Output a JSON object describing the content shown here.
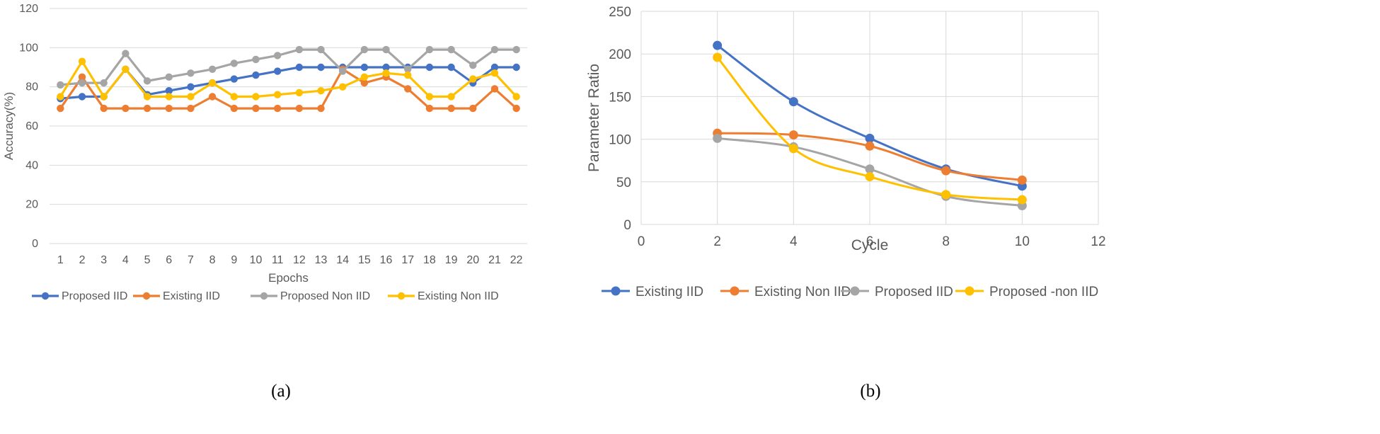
{
  "chart_data": [
    {
      "type": "line",
      "caption": "(a)",
      "xlabel": "Epochs",
      "ylabel": "Accuracy(%)",
      "ylim": [
        0,
        120
      ],
      "yticks": [
        0,
        20,
        40,
        60,
        80,
        100,
        120
      ],
      "categories": [
        "1",
        "2",
        "3",
        "4",
        "5",
        "6",
        "7",
        "8",
        "9",
        "10",
        "11",
        "12",
        "13",
        "14",
        "15",
        "16",
        "17",
        "18",
        "19",
        "20",
        "21",
        "22"
      ],
      "grid": "horizontal",
      "legend_position": "bottom",
      "series": [
        {
          "name": "Proposed IID",
          "color": "#4472C4",
          "values": [
            74,
            75,
            75,
            89,
            76,
            78,
            80,
            82,
            84,
            86,
            88,
            90,
            90,
            90,
            90,
            90,
            90,
            90,
            90,
            82,
            90,
            90
          ]
        },
        {
          "name": "Existing IID",
          "color": "#ED7D31",
          "values": [
            69,
            85,
            69,
            69,
            69,
            69,
            69,
            75,
            69,
            69,
            69,
            69,
            69,
            89,
            82,
            85,
            79,
            69,
            69,
            69,
            79,
            69
          ]
        },
        {
          "name": "Proposed Non IID",
          "color": "#A5A5A5",
          "values": [
            81,
            82,
            82,
            97,
            83,
            85,
            87,
            89,
            92,
            94,
            96,
            99,
            99,
            88,
            99,
            99,
            89,
            99,
            99,
            91,
            99,
            99
          ]
        },
        {
          "name": "Existing Non IID",
          "color": "#FFC000",
          "values": [
            75,
            93,
            75,
            89,
            75,
            75,
            75,
            82,
            75,
            75,
            76,
            77,
            78,
            80,
            85,
            87,
            86,
            75,
            75,
            84,
            87,
            75
          ]
        }
      ]
    },
    {
      "type": "line",
      "caption": "(b)",
      "xlabel": "Cycle",
      "ylabel": "Parameter Ratio",
      "xlim": [
        0,
        12
      ],
      "xticks": [
        0,
        2,
        4,
        6,
        8,
        10,
        12
      ],
      "ylim": [
        0,
        250
      ],
      "yticks": [
        0,
        50,
        100,
        150,
        200,
        250
      ],
      "grid": "both",
      "smooth": true,
      "legend_position": "bottom",
      "x": [
        2,
        4,
        6,
        8,
        10
      ],
      "series": [
        {
          "name": "Existing IID",
          "color": "#4472C4",
          "values": [
            210,
            144,
            101,
            65,
            45
          ]
        },
        {
          "name": "Existing Non IID",
          "color": "#ED7D31",
          "values": [
            107,
            105,
            92,
            63,
            52
          ]
        },
        {
          "name": "Proposed IID",
          "color": "#A5A5A5",
          "values": [
            101,
            91,
            65,
            33,
            22
          ]
        },
        {
          "name": "Proposed -non IID",
          "color": "#FFC000",
          "values": [
            196,
            89,
            56,
            35,
            29
          ]
        }
      ]
    }
  ]
}
